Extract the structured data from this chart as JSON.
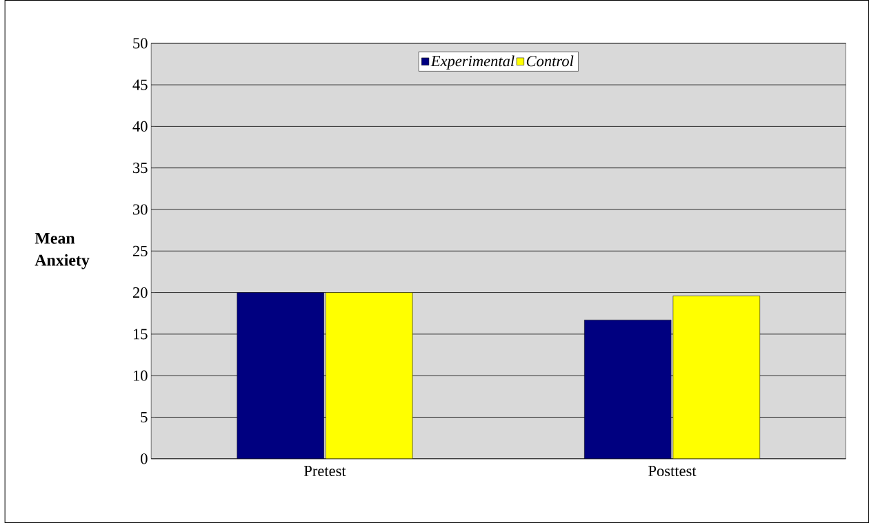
{
  "chart_data": {
    "type": "bar",
    "ylabel": "Mean Anxiety",
    "categories": [
      "Pretest",
      "Posttest"
    ],
    "series": [
      {
        "name": "Experimental",
        "color": "#000080",
        "values": [
          20,
          16.7
        ]
      },
      {
        "name": "Control",
        "color": "#ffff00",
        "values": [
          20,
          19.6
        ]
      }
    ],
    "ylim": [
      0,
      50
    ],
    "yticks": [
      0,
      5,
      10,
      15,
      20,
      25,
      30,
      35,
      40,
      45,
      50
    ],
    "grid": "y",
    "legend": "top"
  }
}
